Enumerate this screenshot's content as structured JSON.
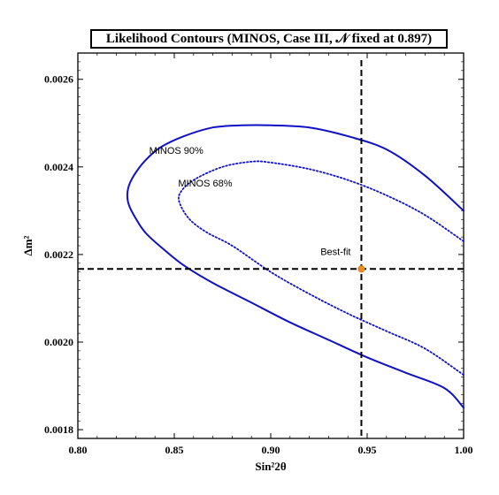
{
  "chart_data": {
    "type": "line",
    "title": "Likelihood Contours (MINOS, Case III, 𝒩 fixed at 0.897)",
    "xlabel": "Sin²2θ",
    "ylabel": "Δm²",
    "xlim": [
      0.8,
      1.0
    ],
    "ylim": [
      0.00178,
      0.00266
    ],
    "x_ticks": [
      "0.80",
      "0.85",
      "0.90",
      "0.95",
      "1.00"
    ],
    "x_tick_values": [
      0.8,
      0.85,
      0.9,
      0.95,
      1.0
    ],
    "y_ticks": [
      "0.0018",
      "0.0020",
      "0.0022",
      "0.0024",
      "0.0026"
    ],
    "y_tick_values": [
      0.0018,
      0.002,
      0.0022,
      0.0024,
      0.0026
    ],
    "grid": false,
    "series": [
      {
        "name": "MINOS 90%",
        "style": "solid",
        "color": "#1010c8",
        "x": [
          1.0,
          0.98,
          0.96,
          0.94,
          0.92,
          0.9,
          0.885,
          0.87,
          0.855,
          0.843,
          0.835,
          0.829,
          0.826,
          0.826,
          0.829,
          0.835,
          0.845,
          0.855,
          0.87,
          0.89,
          0.91,
          0.93,
          0.95,
          0.97,
          0.99,
          1.0
        ],
        "y": [
          0.0023,
          0.00238,
          0.00244,
          0.00247,
          0.00249,
          0.002495,
          0.002495,
          0.00249,
          0.00247,
          0.002445,
          0.002415,
          0.00238,
          0.00235,
          0.00232,
          0.00229,
          0.00225,
          0.00221,
          0.002175,
          0.002135,
          0.00209,
          0.002045,
          0.002005,
          0.001965,
          0.00193,
          0.001895,
          0.00185
        ]
      },
      {
        "name": "MINOS 68%",
        "style": "dotted",
        "color": "#1010c8",
        "x": [
          1.0,
          0.98,
          0.96,
          0.94,
          0.92,
          0.9,
          0.89,
          0.875,
          0.86,
          0.853,
          0.853,
          0.858,
          0.867,
          0.88,
          0.9,
          0.92,
          0.94,
          0.96,
          0.98,
          1.0
        ],
        "y": [
          0.00223,
          0.00229,
          0.002335,
          0.00237,
          0.002395,
          0.00241,
          0.002412,
          0.0024,
          0.00237,
          0.00234,
          0.002315,
          0.00228,
          0.00225,
          0.00222,
          0.00216,
          0.00211,
          0.002065,
          0.002025,
          0.001985,
          0.001925
        ]
      }
    ],
    "best_fit": {
      "label": "Best-fit",
      "x": 0.947,
      "y": 0.002167,
      "color": "#f08c1e"
    },
    "annotations": [
      {
        "text": "MINOS 90%",
        "x": 0.837,
        "y": 0.00243
      },
      {
        "text": "MINOS 68%",
        "x": 0.852,
        "y": 0.002355
      }
    ]
  }
}
